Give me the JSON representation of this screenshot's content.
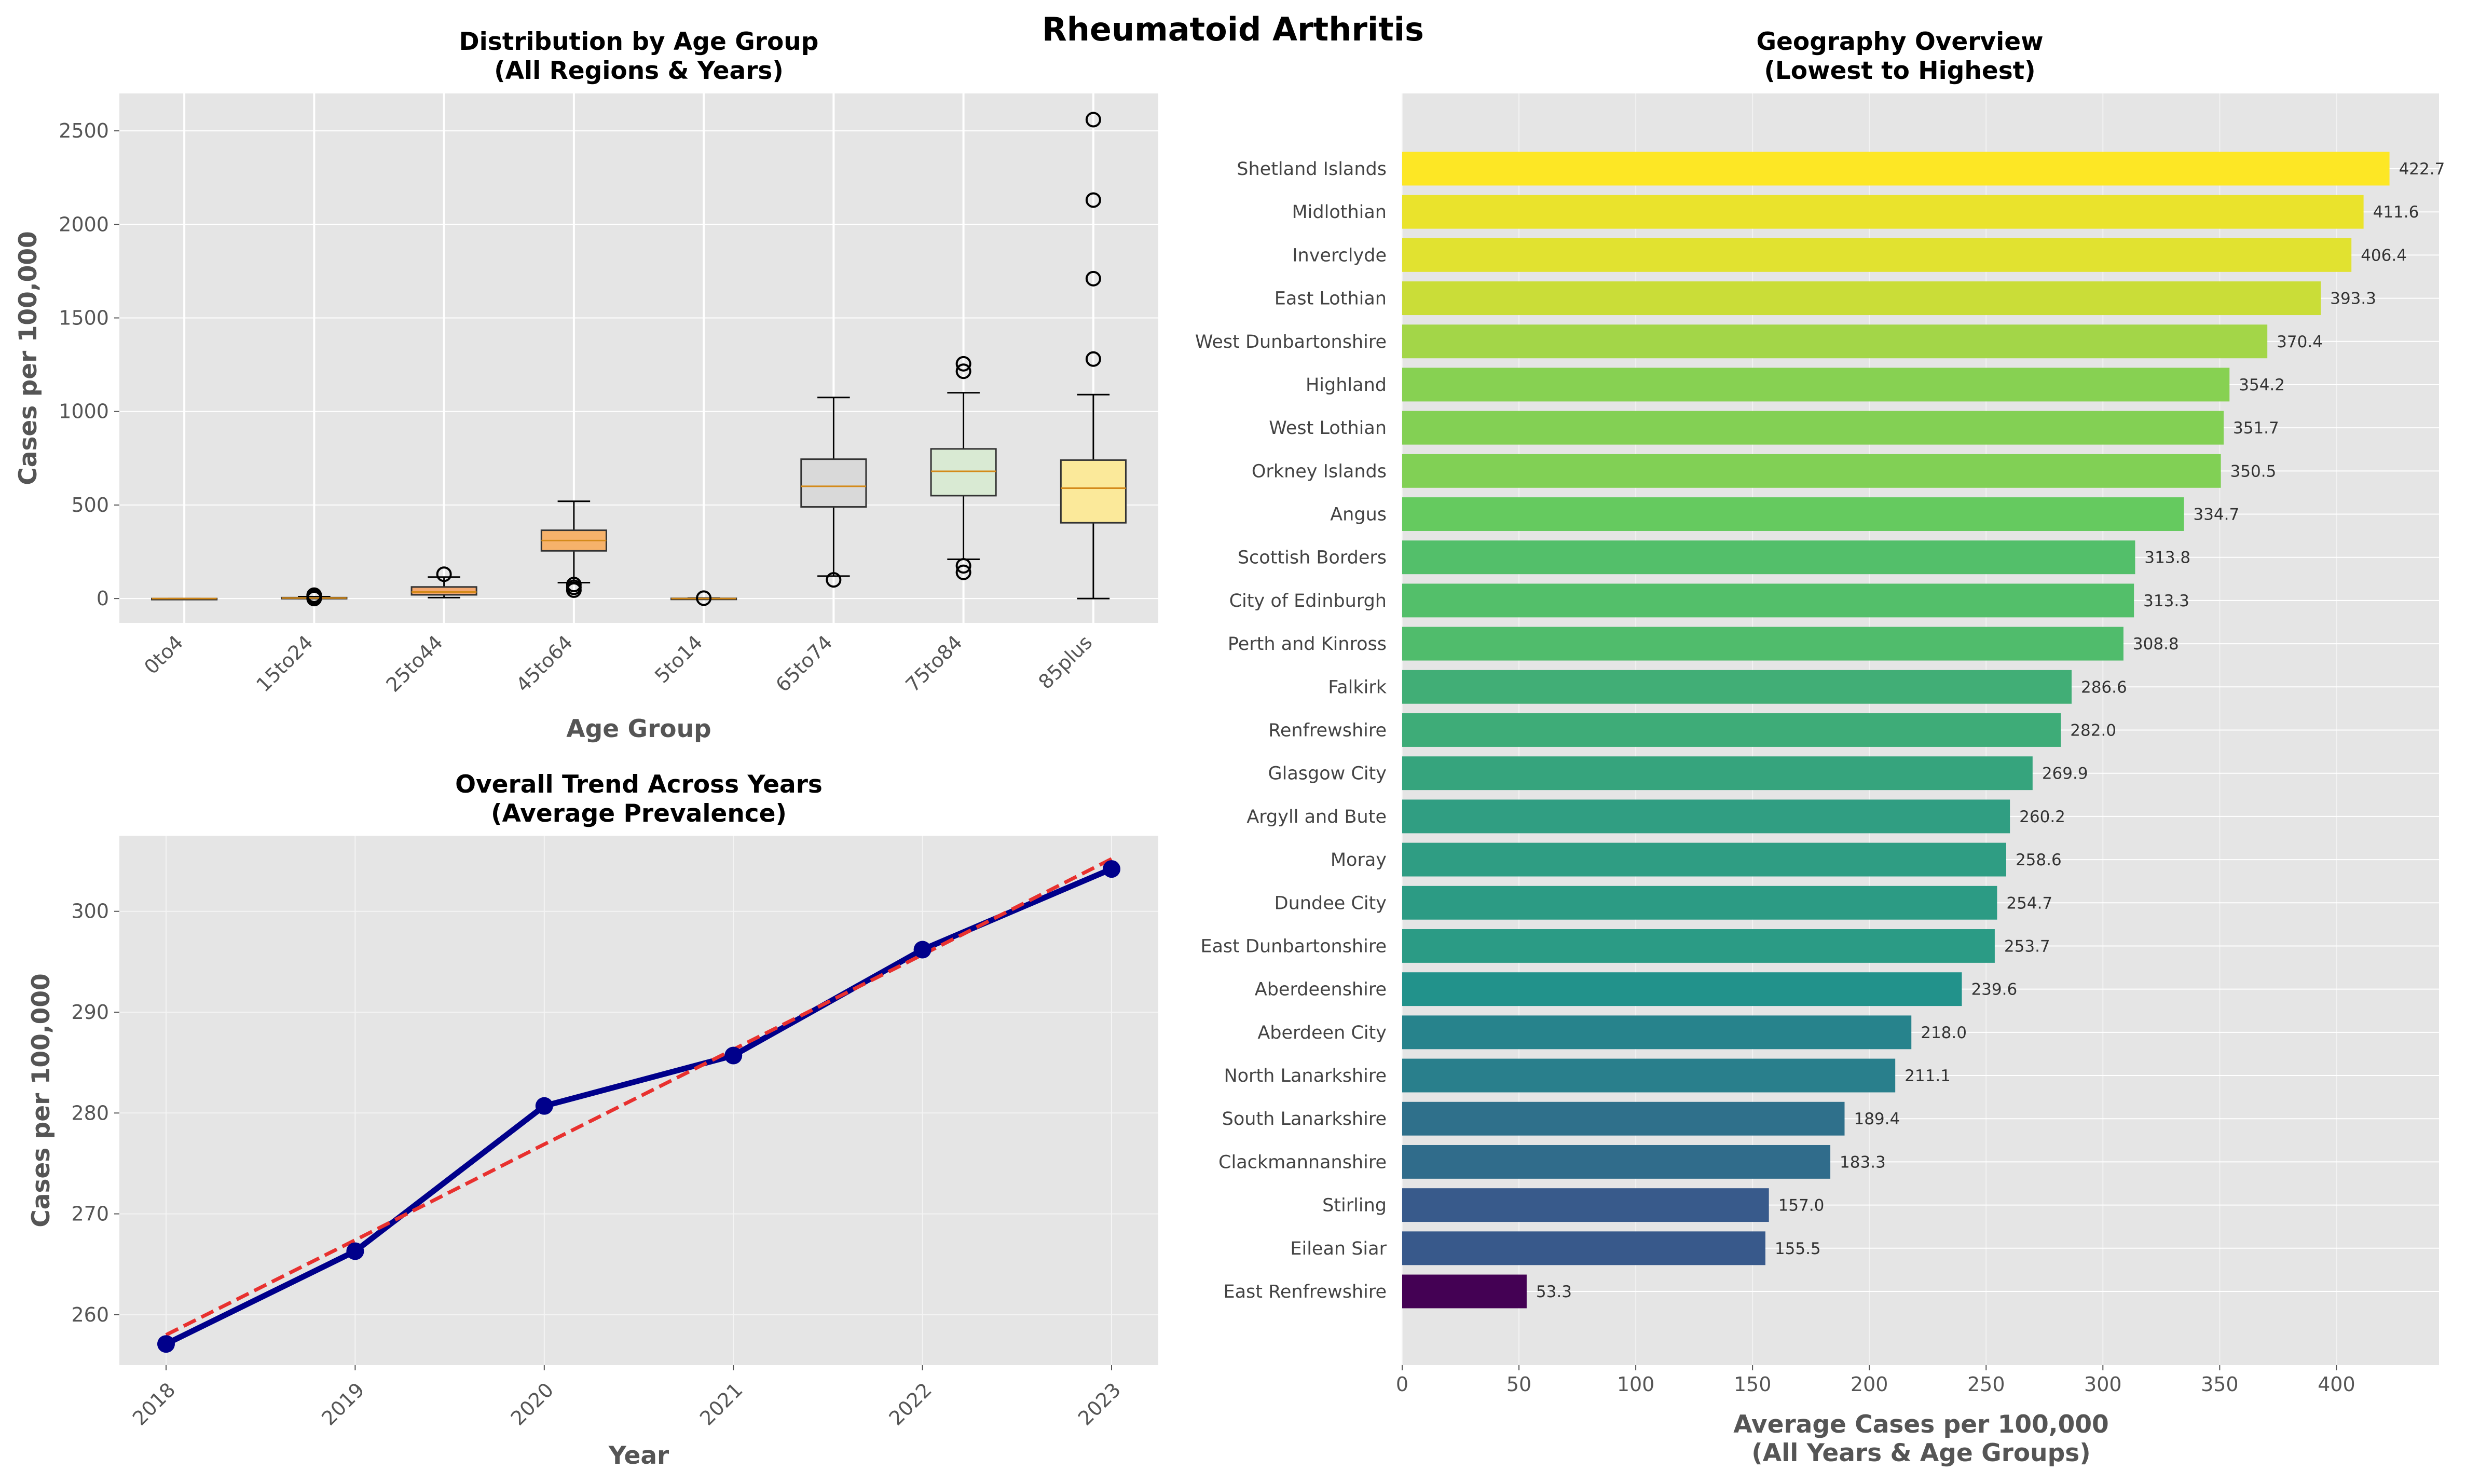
{
  "figure": {
    "title": "Rheumatoid Arthritis"
  },
  "chart_data": [
    {
      "type": "box",
      "title": "Distribution by Age Group\n(All Regions & Years)",
      "xlabel": "Age Group",
      "ylabel": "Cases per 100,000",
      "categories": [
        "0to4",
        "15to24",
        "25to44",
        "45to64",
        "5to14",
        "65to74",
        "75to84",
        "85plus"
      ],
      "colors": [
        "#f2e08a",
        "#f6b26b",
        "#f4a870",
        "#f6b26b",
        "#f2e08a",
        "#d9d9d9",
        "#d9ead3",
        "#fbe99a"
      ],
      "boxes": [
        {
          "whislo": 0,
          "q1": 0,
          "med": 0,
          "q3": 0,
          "whishi": 0,
          "fliers": []
        },
        {
          "whislo": 0,
          "q1": 1,
          "med": 3,
          "q3": 5,
          "whishi": 10,
          "fliers": [
            0,
            10,
            18
          ]
        },
        {
          "whislo": 5,
          "q1": 20,
          "med": 35,
          "q3": 62,
          "whishi": 115,
          "fliers": [
            130
          ]
        },
        {
          "whislo": 85,
          "q1": 255,
          "med": 310,
          "q3": 365,
          "whishi": 520,
          "fliers": [
            45,
            60,
            75
          ]
        },
        {
          "whislo": 0,
          "q1": 0,
          "med": 0,
          "q3": 1,
          "whishi": 2,
          "fliers": [
            2
          ]
        },
        {
          "whislo": 120,
          "q1": 490,
          "med": 600,
          "q3": 745,
          "whishi": 1075,
          "fliers": [
            100
          ]
        },
        {
          "whislo": 210,
          "q1": 550,
          "med": 680,
          "q3": 800,
          "whishi": 1100,
          "fliers": [
            140,
            175,
            1215,
            1255
          ]
        },
        {
          "whislo": 0,
          "q1": 405,
          "med": 590,
          "q3": 740,
          "whishi": 1090,
          "fliers": [
            1280,
            1710,
            2130,
            2560
          ]
        }
      ],
      "ylim": [
        -130,
        2700
      ],
      "yticks": [
        0,
        500,
        1000,
        1500,
        2000,
        2500
      ],
      "grid": true
    },
    {
      "type": "line",
      "title": "Overall Trend Across Years\n(Average Prevalence)",
      "xlabel": "Year",
      "ylabel": "Cases per 100,000",
      "x": [
        "2018",
        "2019",
        "2020",
        "2021",
        "2022",
        "2023"
      ],
      "series": [
        {
          "values": [
            257.1,
            266.3,
            280.7,
            285.7,
            296.2,
            304.2
          ],
          "color": "#00008b",
          "style": "solid",
          "marker": "circle"
        },
        {
          "values": [
            258.0,
            267.4,
            276.9,
            286.3,
            295.7,
            305.2
          ],
          "color": "#e8312f",
          "style": "dashed"
        }
      ],
      "ylim": [
        255,
        307.5
      ],
      "yticks": [
        260,
        270,
        280,
        290,
        300
      ],
      "grid": true
    },
    {
      "type": "bar",
      "orientation": "horizontal",
      "title": "Geography Overview\n(Lowest to Highest)",
      "xlabel": "Average Cases per 100,000\n(All Years & Age Groups)",
      "categories": [
        "Shetland Islands",
        "Midlothian",
        "Inverclyde",
        "East Lothian",
        "West Dunbartonshire",
        "Highland",
        "West Lothian",
        "Orkney Islands",
        "Angus",
        "Scottish Borders",
        "City of Edinburgh",
        "Perth and Kinross",
        "Falkirk",
        "Renfrewshire",
        "Glasgow City",
        "Argyll and Bute",
        "Moray",
        "Dundee City",
        "East Dunbartonshire",
        "Aberdeenshire",
        "Aberdeen City",
        "North Lanarkshire",
        "South Lanarkshire",
        "Clackmannanshire",
        "Stirling",
        "Eilean Siar",
        "East Renfrewshire"
      ],
      "values": [
        422.7,
        411.6,
        406.4,
        393.3,
        370.4,
        354.2,
        351.7,
        350.5,
        334.7,
        313.8,
        313.3,
        308.8,
        286.6,
        282.0,
        269.9,
        260.2,
        258.6,
        254.7,
        253.7,
        239.6,
        218.0,
        211.1,
        189.4,
        183.3,
        157.0,
        155.5,
        53.3
      ],
      "value_labels": [
        "422.7",
        "411.6",
        "406.4",
        "393.3",
        "370.4",
        "354.2",
        "351.7",
        "350.5",
        "334.7",
        "313.8",
        "313.3",
        "308.8",
        "286.6",
        "282.0",
        "269.9",
        "260.2",
        "258.6",
        "254.7",
        "253.7",
        "239.6",
        "218.0",
        "211.1",
        "189.4",
        "183.3",
        "157.0",
        "155.5",
        "53.3"
      ],
      "colormap": "viridis",
      "xlim": [
        0,
        443.9
      ],
      "xticks": [
        0,
        50,
        100,
        150,
        200,
        250,
        300,
        350,
        400
      ],
      "grid": true
    }
  ]
}
